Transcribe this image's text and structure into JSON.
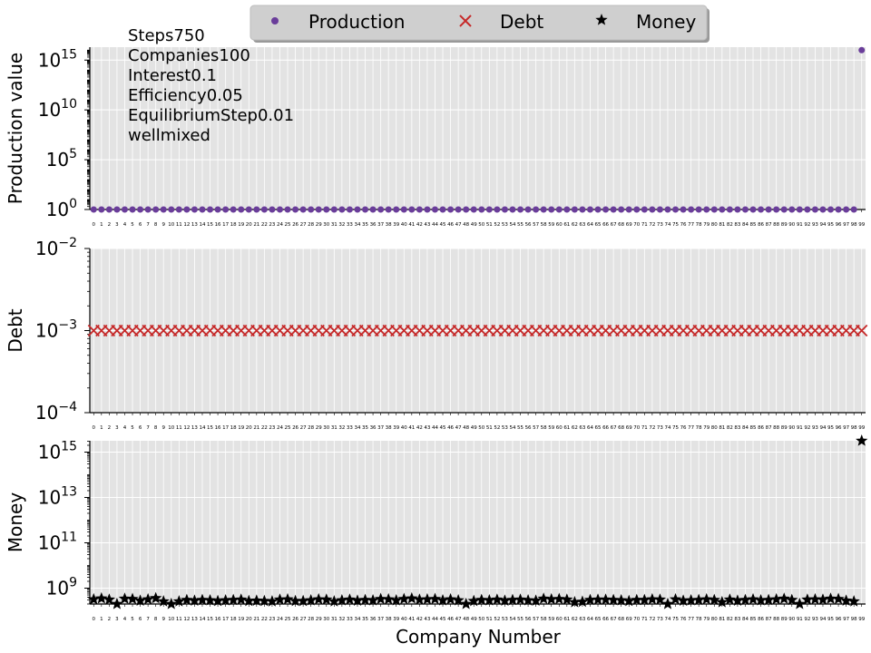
{
  "legend": {
    "placement": "top-center",
    "entries": [
      {
        "label": "Production",
        "marker": "circle",
        "color": "#6a3d9a"
      },
      {
        "label": "Debt",
        "marker": "x",
        "color": "#c62828"
      },
      {
        "label": "Money",
        "marker": "star",
        "color": "#000000"
      }
    ]
  },
  "annotation_lines": [
    "Steps750",
    "Companies100",
    "Interest0.1",
    "Efficiency0.05",
    "EquilibriumStep0.01",
    "wellmixed"
  ],
  "xlabel": "Company Number",
  "chart_data": [
    {
      "type": "scatter",
      "ylabel": "Production value",
      "scale": "log",
      "ylim_exp": [
        0,
        16.3
      ],
      "ytick_exps": [
        0,
        5,
        10,
        15
      ],
      "series": [
        {
          "name": "Production",
          "marker": "circle",
          "color": "#6a3d9a",
          "values": [
            1,
            1,
            1,
            1,
            1,
            1,
            1,
            1,
            1,
            1,
            1,
            1,
            1,
            1,
            1,
            1,
            1,
            1,
            1,
            1,
            1,
            1,
            1,
            1,
            1,
            1,
            1,
            1,
            1,
            1,
            1,
            1,
            1,
            1,
            1,
            1,
            1,
            1,
            1,
            1,
            1,
            1,
            1,
            1,
            1,
            1,
            1,
            1,
            1,
            1,
            1,
            1,
            1,
            1,
            1,
            1,
            1,
            1,
            1,
            1,
            1,
            1,
            1,
            1,
            1,
            1,
            1,
            1,
            1,
            1,
            1,
            1,
            1,
            1,
            1,
            1,
            1,
            1,
            1,
            1,
            1,
            1,
            1,
            1,
            1,
            1,
            1,
            1,
            1,
            1,
            1,
            1,
            1,
            1,
            1,
            1,
            1,
            1,
            1,
            1e+16
          ]
        }
      ],
      "x_categories_count": 100,
      "grid": true
    },
    {
      "type": "scatter",
      "ylabel": "Debt",
      "scale": "log",
      "ylim_exp": [
        -4,
        -2
      ],
      "ytick_exps": [
        -4,
        -3,
        -2
      ],
      "series": [
        {
          "name": "Debt",
          "marker": "x",
          "color": "#c62828",
          "values": [
            0.001,
            0.001,
            0.001,
            0.001,
            0.001,
            0.001,
            0.001,
            0.001,
            0.001,
            0.001,
            0.001,
            0.001,
            0.001,
            0.001,
            0.001,
            0.001,
            0.001,
            0.001,
            0.001,
            0.001,
            0.001,
            0.001,
            0.001,
            0.001,
            0.001,
            0.001,
            0.001,
            0.001,
            0.001,
            0.001,
            0.001,
            0.001,
            0.001,
            0.001,
            0.001,
            0.001,
            0.001,
            0.001,
            0.001,
            0.001,
            0.001,
            0.001,
            0.001,
            0.001,
            0.001,
            0.001,
            0.001,
            0.001,
            0.001,
            0.001,
            0.001,
            0.001,
            0.001,
            0.001,
            0.001,
            0.001,
            0.001,
            0.001,
            0.001,
            0.001,
            0.001,
            0.001,
            0.001,
            0.001,
            0.001,
            0.001,
            0.001,
            0.001,
            0.001,
            0.001,
            0.001,
            0.001,
            0.001,
            0.001,
            0.001,
            0.001,
            0.001,
            0.001,
            0.001,
            0.001,
            0.001,
            0.001,
            0.001,
            0.001,
            0.001,
            0.001,
            0.001,
            0.001,
            0.001,
            0.001,
            0.001,
            0.001,
            0.001,
            0.001,
            0.001,
            0.001,
            0.001,
            0.001,
            0.001,
            0.001
          ]
        }
      ],
      "x_categories_count": 100,
      "grid": true
    },
    {
      "type": "scatter",
      "ylabel": "Money",
      "scale": "log",
      "ylim_exp": [
        8.3,
        15.5
      ],
      "ytick_exps": [
        9,
        11,
        13,
        15
      ],
      "series": [
        {
          "name": "Money",
          "marker": "star",
          "color": "#000000",
          "values": [
            320000000.0,
            350000000.0,
            310000000.0,
            140000000.0,
            340000000.0,
            330000000.0,
            280000000.0,
            320000000.0,
            360000000.0,
            260000000.0,
            160000000.0,
            260000000.0,
            300000000.0,
            280000000.0,
            300000000.0,
            290000000.0,
            270000000.0,
            290000000.0,
            300000000.0,
            310000000.0,
            270000000.0,
            280000000.0,
            270000000.0,
            260000000.0,
            310000000.0,
            320000000.0,
            270000000.0,
            270000000.0,
            290000000.0,
            320000000.0,
            310000000.0,
            260000000.0,
            290000000.0,
            310000000.0,
            280000000.0,
            300000000.0,
            290000000.0,
            330000000.0,
            320000000.0,
            290000000.0,
            330000000.0,
            350000000.0,
            310000000.0,
            320000000.0,
            330000000.0,
            290000000.0,
            320000000.0,
            290000000.0,
            160000000.0,
            270000000.0,
            300000000.0,
            290000000.0,
            310000000.0,
            280000000.0,
            300000000.0,
            310000000.0,
            290000000.0,
            280000000.0,
            340000000.0,
            320000000.0,
            330000000.0,
            310000000.0,
            240000000.0,
            250000000.0,
            300000000.0,
            310000000.0,
            310000000.0,
            300000000.0,
            290000000.0,
            270000000.0,
            300000000.0,
            300000000.0,
            320000000.0,
            310000000.0,
            120000000.0,
            320000000.0,
            280000000.0,
            290000000.0,
            300000000.0,
            320000000.0,
            300000000.0,
            240000000.0,
            310000000.0,
            280000000.0,
            300000000.0,
            320000000.0,
            290000000.0,
            300000000.0,
            320000000.0,
            340000000.0,
            300000000.0,
            130000000.0,
            310000000.0,
            320000000.0,
            310000000.0,
            340000000.0,
            330000000.0,
            280000000.0,
            260000000.0,
            4000000000000000.0
          ]
        }
      ],
      "x_categories_count": 100,
      "grid": true
    }
  ]
}
